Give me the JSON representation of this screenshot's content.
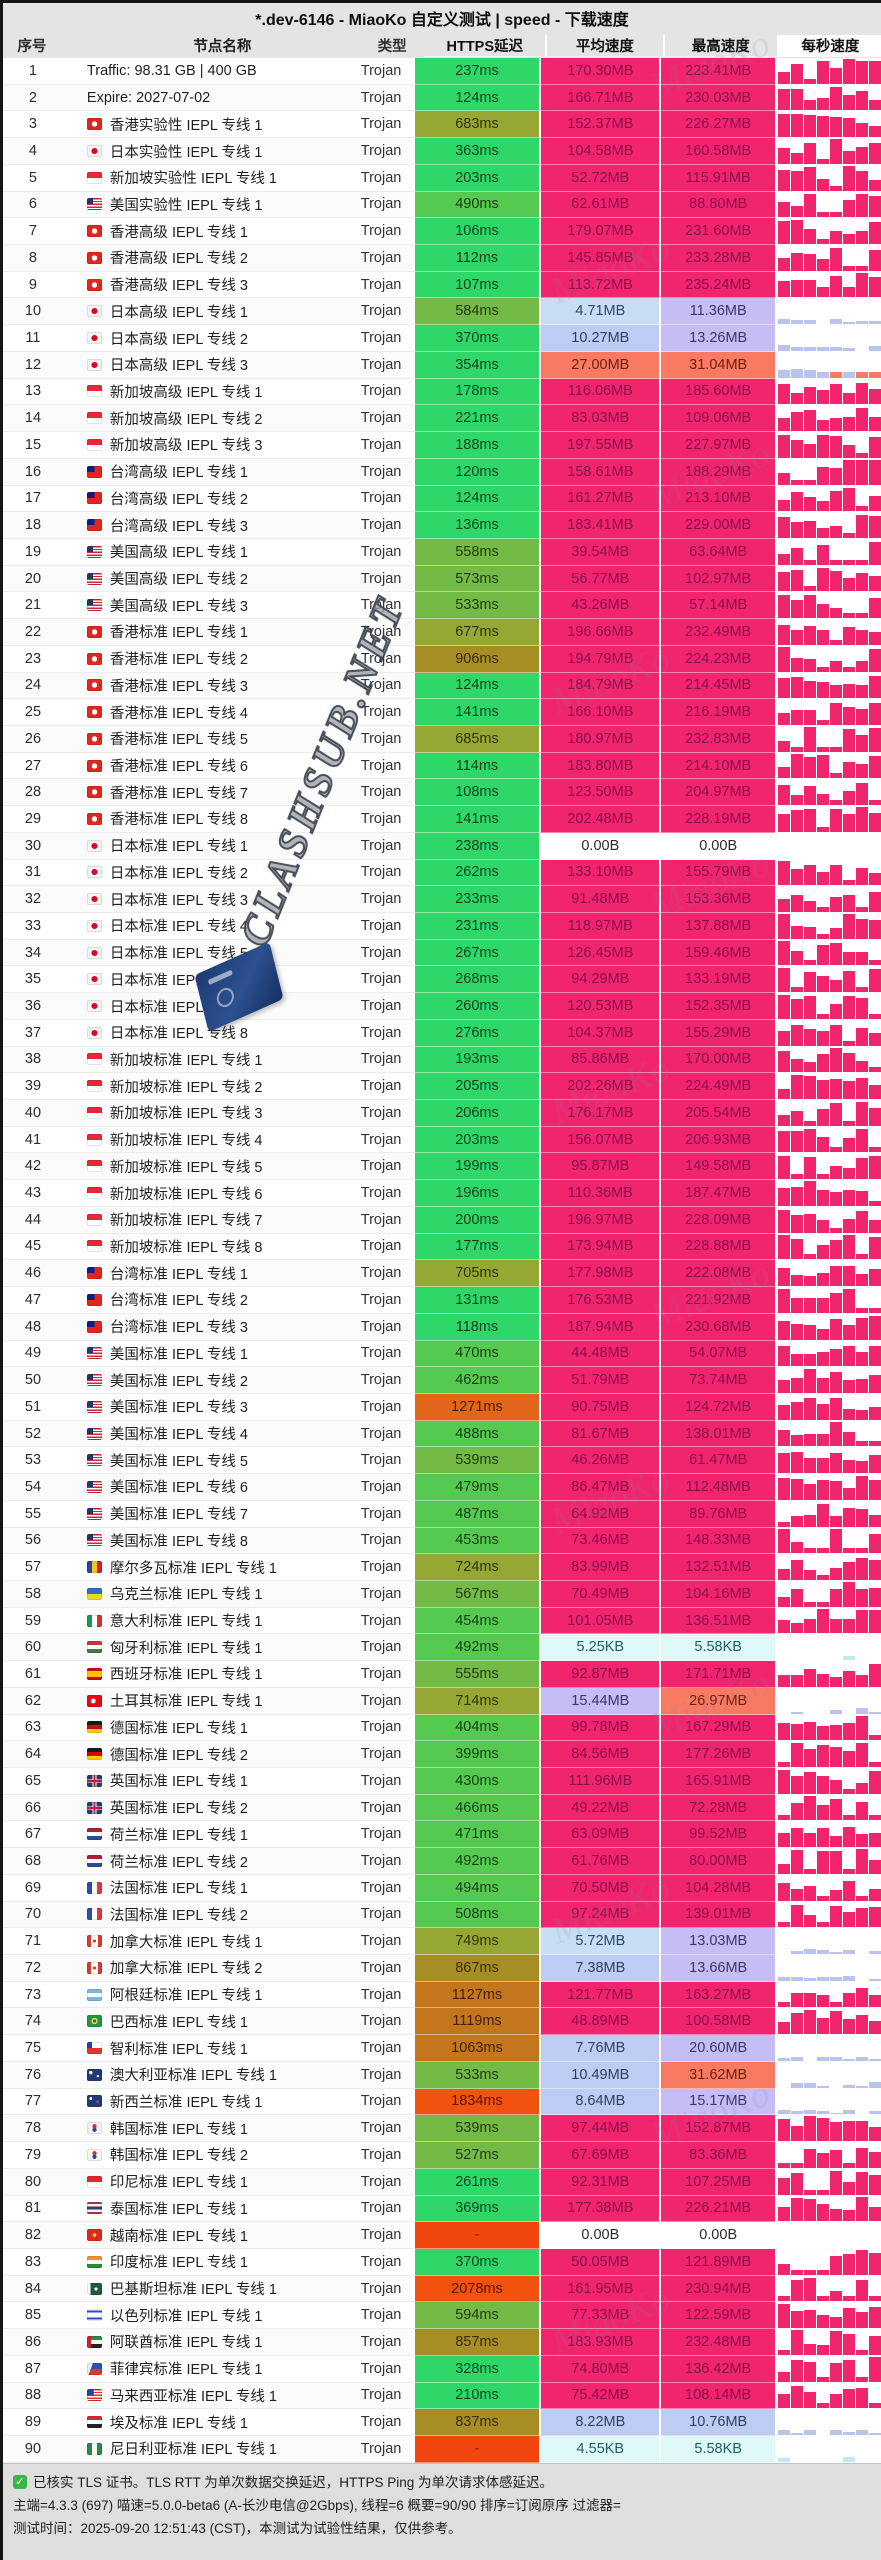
{
  "title": "*.dev-6146 - MiaoKo 自定义测试 | speed - 下载速度",
  "columns": {
    "seq": "序号",
    "name": "节点名称",
    "type": "类型",
    "latency": "HTTPS延迟",
    "avg_speed": "平均速度",
    "max_speed": "最高速度",
    "per_sec_speed": "每秒速度"
  },
  "watermark": {
    "diagonal": "CLASHSUB.NET",
    "background": "MiaoKo"
  },
  "colors": {
    "accent_pink": "#f1256e",
    "latency_green": "#2fd768",
    "latency_olive": "#96a833",
    "latency_orange": "#e0661c",
    "latency_red": "#f1520f",
    "speed_salmon": "#f97a63",
    "speed_lavender": "#c6bdf5",
    "speed_lightblue": "#c8def5",
    "speed_kb_cyan": "#dff8f8",
    "header_bg": "#e4e4e4"
  },
  "row_fields": [
    "seq",
    "flag",
    "name",
    "type",
    "latency",
    "avg",
    "max"
  ],
  "rows": [
    [
      "1",
      "",
      "Traffic: 98.31 GB | 400 GB",
      "Trojan",
      "237ms",
      "170.30MB",
      "223.41MB"
    ],
    [
      "2",
      "",
      "Expire: 2027-07-02",
      "Trojan",
      "124ms",
      "166.71MB",
      "230.03MB"
    ],
    [
      "3",
      "hk",
      "香港实验性 IEPL 专线 1",
      "Trojan",
      "683ms",
      "152.37MB",
      "226.27MB"
    ],
    [
      "4",
      "jp",
      "日本实验性 IEPL 专线 1",
      "Trojan",
      "363ms",
      "104.58MB",
      "160.58MB"
    ],
    [
      "5",
      "sg",
      "新加坡实验性 IEPL 专线 1",
      "Trojan",
      "203ms",
      "52.72MB",
      "115.91MB"
    ],
    [
      "6",
      "us",
      "美国实验性 IEPL 专线 1",
      "Trojan",
      "490ms",
      "62.61MB",
      "88.80MB"
    ],
    [
      "7",
      "hk",
      "香港高级 IEPL 专线 1",
      "Trojan",
      "106ms",
      "179.07MB",
      "231.60MB"
    ],
    [
      "8",
      "hk",
      "香港高级 IEPL 专线 2",
      "Trojan",
      "112ms",
      "145.85MB",
      "233.28MB"
    ],
    [
      "9",
      "hk",
      "香港高级 IEPL 专线 3",
      "Trojan",
      "107ms",
      "113.72MB",
      "235.24MB"
    ],
    [
      "10",
      "jp",
      "日本高级 IEPL 专线 1",
      "Trojan",
      "584ms",
      "4.71MB",
      "11.36MB"
    ],
    [
      "11",
      "jp",
      "日本高级 IEPL 专线 2",
      "Trojan",
      "370ms",
      "10.27MB",
      "13.26MB"
    ],
    [
      "12",
      "jp",
      "日本高级 IEPL 专线 3",
      "Trojan",
      "354ms",
      "27.00MB",
      "31.04MB"
    ],
    [
      "13",
      "sg",
      "新加坡高级 IEPL 专线 1",
      "Trojan",
      "178ms",
      "116.06MB",
      "185.60MB"
    ],
    [
      "14",
      "sg",
      "新加坡高级 IEPL 专线 2",
      "Trojan",
      "221ms",
      "83.03MB",
      "109.06MB"
    ],
    [
      "15",
      "sg",
      "新加坡高级 IEPL 专线 3",
      "Trojan",
      "188ms",
      "197.55MB",
      "227.97MB"
    ],
    [
      "16",
      "tw",
      "台湾高级 IEPL 专线 1",
      "Trojan",
      "120ms",
      "158.61MB",
      "188.29MB"
    ],
    [
      "17",
      "tw",
      "台湾高级 IEPL 专线 2",
      "Trojan",
      "124ms",
      "161.27MB",
      "213.10MB"
    ],
    [
      "18",
      "tw",
      "台湾高级 IEPL 专线 3",
      "Trojan",
      "136ms",
      "183.41MB",
      "229.00MB"
    ],
    [
      "19",
      "us",
      "美国高级 IEPL 专线 1",
      "Trojan",
      "558ms",
      "39.54MB",
      "63.64MB"
    ],
    [
      "20",
      "us",
      "美国高级 IEPL 专线 2",
      "Trojan",
      "573ms",
      "56.77MB",
      "102.97MB"
    ],
    [
      "21",
      "us",
      "美国高级 IEPL 专线 3",
      "Trojan",
      "533ms",
      "43.26MB",
      "57.14MB"
    ],
    [
      "22",
      "hk",
      "香港标准 IEPL 专线 1",
      "Trojan",
      "677ms",
      "196.66MB",
      "232.49MB"
    ],
    [
      "23",
      "hk",
      "香港标准 IEPL 专线 2",
      "Trojan",
      "906ms",
      "194.79MB",
      "224.23MB"
    ],
    [
      "24",
      "hk",
      "香港标准 IEPL 专线 3",
      "Trojan",
      "124ms",
      "184.79MB",
      "214.45MB"
    ],
    [
      "25",
      "hk",
      "香港标准 IEPL 专线 4",
      "Trojan",
      "141ms",
      "166.10MB",
      "216.19MB"
    ],
    [
      "26",
      "hk",
      "香港标准 IEPL 专线 5",
      "Trojan",
      "685ms",
      "180.97MB",
      "232.83MB"
    ],
    [
      "27",
      "hk",
      "香港标准 IEPL 专线 6",
      "Trojan",
      "114ms",
      "183.80MB",
      "214.10MB"
    ],
    [
      "28",
      "hk",
      "香港标准 IEPL 专线 7",
      "Trojan",
      "108ms",
      "123.50MB",
      "204.97MB"
    ],
    [
      "29",
      "hk",
      "香港标准 IEPL 专线 8",
      "Trojan",
      "141ms",
      "202.48MB",
      "228.19MB"
    ],
    [
      "30",
      "jp",
      "日本标准 IEPL 专线 1",
      "Trojan",
      "238ms",
      "0.00B",
      "0.00B"
    ],
    [
      "31",
      "jp",
      "日本标准 IEPL 专线 2",
      "Trojan",
      "262ms",
      "133.10MB",
      "155.79MB"
    ],
    [
      "32",
      "jp",
      "日本标准 IEPL 专线 3",
      "Trojan",
      "233ms",
      "91.48MB",
      "153.36MB"
    ],
    [
      "33",
      "jp",
      "日本标准 IEPL 专线 4",
      "Trojan",
      "231ms",
      "118.97MB",
      "137.88MB"
    ],
    [
      "34",
      "jp",
      "日本标准 IEPL 专线 5",
      "Trojan",
      "267ms",
      "126.45MB",
      "159.46MB"
    ],
    [
      "35",
      "jp",
      "日本标准 IEPL 专线 6",
      "Trojan",
      "268ms",
      "94.29MB",
      "133.19MB"
    ],
    [
      "36",
      "jp",
      "日本标准 IEPL 专线 7",
      "Trojan",
      "260ms",
      "120.53MB",
      "152.35MB"
    ],
    [
      "37",
      "jp",
      "日本标准 IEPL 专线 8",
      "Trojan",
      "276ms",
      "104.37MB",
      "155.29MB"
    ],
    [
      "38",
      "sg",
      "新加坡标准 IEPL 专线 1",
      "Trojan",
      "193ms",
      "85.86MB",
      "170.00MB"
    ],
    [
      "39",
      "sg",
      "新加坡标准 IEPL 专线 2",
      "Trojan",
      "205ms",
      "202.26MB",
      "224.49MB"
    ],
    [
      "40",
      "sg",
      "新加坡标准 IEPL 专线 3",
      "Trojan",
      "206ms",
      "176.17MB",
      "205.54MB"
    ],
    [
      "41",
      "sg",
      "新加坡标准 IEPL 专线 4",
      "Trojan",
      "203ms",
      "156.07MB",
      "206.93MB"
    ],
    [
      "42",
      "sg",
      "新加坡标准 IEPL 专线 5",
      "Trojan",
      "199ms",
      "95.87MB",
      "149.58MB"
    ],
    [
      "43",
      "sg",
      "新加坡标准 IEPL 专线 6",
      "Trojan",
      "196ms",
      "110.36MB",
      "187.47MB"
    ],
    [
      "44",
      "sg",
      "新加坡标准 IEPL 专线 7",
      "Trojan",
      "200ms",
      "196.97MB",
      "228.09MB"
    ],
    [
      "45",
      "sg",
      "新加坡标准 IEPL 专线 8",
      "Trojan",
      "177ms",
      "173.94MB",
      "228.88MB"
    ],
    [
      "46",
      "tw",
      "台湾标准 IEPL 专线 1",
      "Trojan",
      "705ms",
      "177.98MB",
      "222.08MB"
    ],
    [
      "47",
      "tw",
      "台湾标准 IEPL 专线 2",
      "Trojan",
      "131ms",
      "176.53MB",
      "221.92MB"
    ],
    [
      "48",
      "tw",
      "台湾标准 IEPL 专线 3",
      "Trojan",
      "118ms",
      "187.94MB",
      "230.68MB"
    ],
    [
      "49",
      "us",
      "美国标准 IEPL 专线 1",
      "Trojan",
      "470ms",
      "44.48MB",
      "54.07MB"
    ],
    [
      "50",
      "us",
      "美国标准 IEPL 专线 2",
      "Trojan",
      "462ms",
      "51.79MB",
      "73.74MB"
    ],
    [
      "51",
      "us",
      "美国标准 IEPL 专线 3",
      "Trojan",
      "1271ms",
      "90.75MB",
      "124.72MB"
    ],
    [
      "52",
      "us",
      "美国标准 IEPL 专线 4",
      "Trojan",
      "488ms",
      "81.67MB",
      "138.01MB"
    ],
    [
      "53",
      "us",
      "美国标准 IEPL 专线 5",
      "Trojan",
      "539ms",
      "46.26MB",
      "61.47MB"
    ],
    [
      "54",
      "us",
      "美国标准 IEPL 专线 6",
      "Trojan",
      "479ms",
      "86.47MB",
      "112.48MB"
    ],
    [
      "55",
      "us",
      "美国标准 IEPL 专线 7",
      "Trojan",
      "487ms",
      "64.92MB",
      "89.76MB"
    ],
    [
      "56",
      "us",
      "美国标准 IEPL 专线 8",
      "Trojan",
      "453ms",
      "73.46MB",
      "148.33MB"
    ],
    [
      "57",
      "md",
      "摩尔多瓦标准 IEPL 专线 1",
      "Trojan",
      "724ms",
      "83.99MB",
      "132.51MB"
    ],
    [
      "58",
      "ua",
      "乌克兰标准 IEPL 专线 1",
      "Trojan",
      "567ms",
      "70.49MB",
      "104.16MB"
    ],
    [
      "59",
      "it",
      "意大利标准 IEPL 专线 1",
      "Trojan",
      "454ms",
      "101.05MB",
      "136.51MB"
    ],
    [
      "60",
      "hu",
      "匈牙利标准 IEPL 专线 1",
      "Trojan",
      "492ms",
      "5.25KB",
      "5.58KB"
    ],
    [
      "61",
      "es",
      "西班牙标准 IEPL 专线 1",
      "Trojan",
      "555ms",
      "92.87MB",
      "171.71MB"
    ],
    [
      "62",
      "tr",
      "土耳其标准 IEPL 专线 1",
      "Trojan",
      "714ms",
      "15.44MB",
      "26.97MB"
    ],
    [
      "63",
      "de",
      "德国标准 IEPL 专线 1",
      "Trojan",
      "404ms",
      "99.78MB",
      "167.29MB"
    ],
    [
      "64",
      "de",
      "德国标准 IEPL 专线 2",
      "Trojan",
      "399ms",
      "84.56MB",
      "177.26MB"
    ],
    [
      "65",
      "gb",
      "英国标准 IEPL 专线 1",
      "Trojan",
      "430ms",
      "111.96MB",
      "165.91MB"
    ],
    [
      "66",
      "gb",
      "英国标准 IEPL 专线 2",
      "Trojan",
      "466ms",
      "49.22MB",
      "72.28MB"
    ],
    [
      "67",
      "nl",
      "荷兰标准 IEPL 专线 1",
      "Trojan",
      "471ms",
      "63.09MB",
      "99.52MB"
    ],
    [
      "68",
      "nl",
      "荷兰标准 IEPL 专线 2",
      "Trojan",
      "492ms",
      "61.76MB",
      "80.00MB"
    ],
    [
      "69",
      "fr",
      "法国标准 IEPL 专线 1",
      "Trojan",
      "494ms",
      "70.50MB",
      "104.28MB"
    ],
    [
      "70",
      "fr",
      "法国标准 IEPL 专线 2",
      "Trojan",
      "508ms",
      "97.24MB",
      "139.01MB"
    ],
    [
      "71",
      "ca",
      "加拿大标准 IEPL 专线 1",
      "Trojan",
      "749ms",
      "5.72MB",
      "13.03MB"
    ],
    [
      "72",
      "ca",
      "加拿大标准 IEPL 专线 2",
      "Trojan",
      "867ms",
      "7.38MB",
      "13.66MB"
    ],
    [
      "73",
      "ar",
      "阿根廷标准 IEPL 专线 1",
      "Trojan",
      "1127ms",
      "121.77MB",
      "163.27MB"
    ],
    [
      "74",
      "br",
      "巴西标准 IEPL 专线 1",
      "Trojan",
      "1119ms",
      "48.89MB",
      "100.58MB"
    ],
    [
      "75",
      "cl",
      "智利标准 IEPL 专线 1",
      "Trojan",
      "1063ms",
      "7.76MB",
      "20.60MB"
    ],
    [
      "76",
      "au",
      "澳大利亚标准 IEPL 专线 1",
      "Trojan",
      "533ms",
      "10.49MB",
      "31.62MB"
    ],
    [
      "77",
      "nz",
      "新西兰标准 IEPL 专线 1",
      "Trojan",
      "1834ms",
      "8.64MB",
      "15.17MB"
    ],
    [
      "78",
      "kr",
      "韩国标准 IEPL 专线 1",
      "Trojan",
      "539ms",
      "97.44MB",
      "152.87MB"
    ],
    [
      "79",
      "kr",
      "韩国标准 IEPL 专线 2",
      "Trojan",
      "527ms",
      "67.69MB",
      "83.36MB"
    ],
    [
      "80",
      "id",
      "印尼标准 IEPL 专线 1",
      "Trojan",
      "261ms",
      "92.31MB",
      "107.25MB"
    ],
    [
      "81",
      "th",
      "泰国标准 IEPL 专线 1",
      "Trojan",
      "369ms",
      "177.38MB",
      "226.21MB"
    ],
    [
      "82",
      "vn",
      "越南标准 IEPL 专线 1",
      "Trojan",
      "-",
      "0.00B",
      "0.00B"
    ],
    [
      "83",
      "in",
      "印度标准 IEPL 专线 1",
      "Trojan",
      "370ms",
      "50.05MB",
      "121.89MB"
    ],
    [
      "84",
      "pk",
      "巴基斯坦标准 IEPL 专线 1",
      "Trojan",
      "2078ms",
      "161.95MB",
      "230.94MB"
    ],
    [
      "85",
      "il",
      "以色列标准 IEPL 专线 1",
      "Trojan",
      "594ms",
      "77.33MB",
      "122.59MB"
    ],
    [
      "86",
      "ae",
      "阿联酋标准 IEPL 专线 1",
      "Trojan",
      "857ms",
      "183.93MB",
      "232.48MB"
    ],
    [
      "87",
      "ph",
      "菲律宾标准 IEPL 专线 1",
      "Trojan",
      "328ms",
      "74.80MB",
      "136.42MB"
    ],
    [
      "88",
      "my",
      "马来西亚标准 IEPL 专线 1",
      "Trojan",
      "210ms",
      "75.42MB",
      "108.14MB"
    ],
    [
      "89",
      "eg",
      "埃及标准 IEPL 专线 1",
      "Trojan",
      "837ms",
      "8.22MB",
      "10.76MB"
    ],
    [
      "90",
      "ng",
      "尼日利亚标准 IEPL 专线 1",
      "Trojan",
      "-",
      "4.55KB",
      "5.58KB"
    ]
  ],
  "footer": {
    "line1": "已核实 TLS 证书。TLS RTT 为单次数据交换延迟，HTTPS Ping 为单次请求体感延迟。",
    "line2": "主端=4.3.3 (697) 喵速=5.0.0-beta6 (A-长沙电信@2Gbps), 线程=6 概要=90/90 排序=订阅原序 过滤器=",
    "line3": "测试时间：2025-09-20 12:51:43 (CST)，本测试为试验性结果，仅供参考。"
  }
}
